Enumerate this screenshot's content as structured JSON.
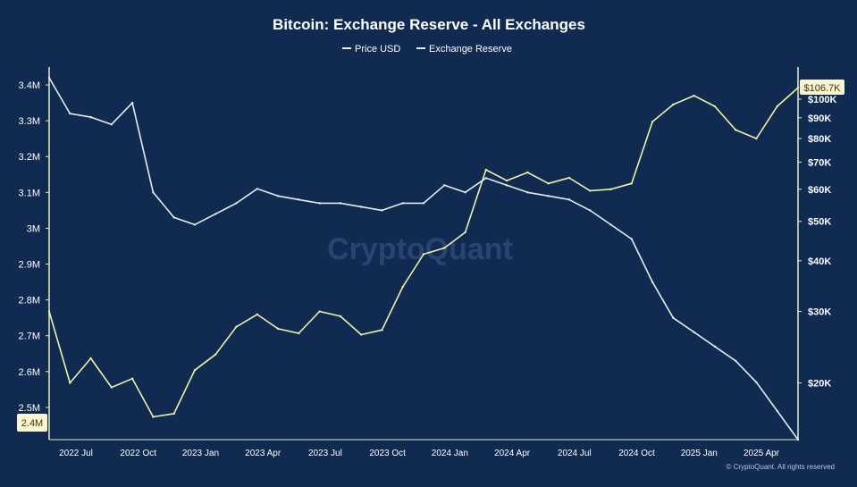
{
  "colors": {
    "background": "#102a52",
    "axis": "#e8ecc8",
    "price_line": "#eef3a8",
    "reserve_line": "#e6ecf2",
    "last_value_badge_bg": "#fbf5cf",
    "last_value_badge_text": "#3b3320",
    "watermark": "#5878a6"
  },
  "watermark": "CryptoQuant",
  "footer": "© CryptoQuant. All rights reserved",
  "chart_data": {
    "type": "line",
    "title": "Bitcoin: Exchange Reserve - All Exchanges",
    "legend_position": "top-center",
    "grid": false,
    "x_ticks": [
      "2022 Jul",
      "2022 Oct",
      "2023 Jan",
      "2023 Apr",
      "2023 Jul",
      "2023 Oct",
      "2024 Jan",
      "2024 Apr",
      "2024 Jul",
      "2024 Oct",
      "2025 Jan",
      "2025 Apr"
    ],
    "x_range": [
      "2022-06",
      "2025-06"
    ],
    "left_axis": {
      "series": "Exchange Reserve",
      "scale": "linear",
      "range": [
        2.41,
        3.45
      ],
      "ticks": [
        {
          "v": 3.4,
          "label": "3.4M"
        },
        {
          "v": 3.3,
          "label": "3.3M"
        },
        {
          "v": 3.2,
          "label": "3.2M"
        },
        {
          "v": 3.1,
          "label": "3.1M"
        },
        {
          "v": 3.0,
          "label": "3M"
        },
        {
          "v": 2.9,
          "label": "2.9M"
        },
        {
          "v": 2.8,
          "label": "2.8M"
        },
        {
          "v": 2.7,
          "label": "2.7M"
        },
        {
          "v": 2.6,
          "label": "2.6M"
        },
        {
          "v": 2.5,
          "label": "2.5M"
        }
      ],
      "last_value_label": "2.4M"
    },
    "right_axis": {
      "series": "Price USD",
      "scale": "log",
      "range": [
        14500,
        120000
      ],
      "ticks": [
        {
          "v": 100000,
          "label": "$100K"
        },
        {
          "v": 90000,
          "label": "$90K"
        },
        {
          "v": 80000,
          "label": "$80K"
        },
        {
          "v": 70000,
          "label": "$70K"
        },
        {
          "v": 60000,
          "label": "$60K"
        },
        {
          "v": 50000,
          "label": "$50K"
        },
        {
          "v": 40000,
          "label": "$40K"
        },
        {
          "v": 30000,
          "label": "$30K"
        },
        {
          "v": 20000,
          "label": "$20K"
        }
      ],
      "last_value_label": "$106.7K"
    },
    "series": [
      {
        "name": "Price USD",
        "axis": "right",
        "x": [
          "2022-06",
          "2022-07",
          "2022-08",
          "2022-09",
          "2022-10",
          "2022-11",
          "2022-12",
          "2023-01",
          "2023-02",
          "2023-03",
          "2023-04",
          "2023-05",
          "2023-06",
          "2023-07",
          "2023-08",
          "2023-09",
          "2023-10",
          "2023-11",
          "2023-12",
          "2024-01",
          "2024-02",
          "2024-03",
          "2024-04",
          "2024-05",
          "2024-06",
          "2024-07",
          "2024-08",
          "2024-09",
          "2024-10",
          "2024-11",
          "2024-12",
          "2025-01",
          "2025-02",
          "2025-03",
          "2025-04",
          "2025-05",
          "2025-06"
        ],
        "values": [
          30000,
          20000,
          23000,
          19500,
          20500,
          16500,
          16800,
          21500,
          23500,
          27500,
          29500,
          27200,
          26500,
          30000,
          29200,
          26300,
          27000,
          34500,
          41500,
          43000,
          47000,
          67000,
          63000,
          66000,
          62000,
          64000,
          59500,
          60000,
          62000,
          88000,
          97000,
          102000,
          96000,
          84000,
          80000,
          96000,
          106700
        ]
      },
      {
        "name": "Exchange Reserve",
        "axis": "left",
        "x": [
          "2022-06",
          "2022-07",
          "2022-08",
          "2022-09",
          "2022-10",
          "2022-11",
          "2022-12",
          "2023-01",
          "2023-02",
          "2023-03",
          "2023-04",
          "2023-05",
          "2023-06",
          "2023-07",
          "2023-08",
          "2023-09",
          "2023-10",
          "2023-11",
          "2023-12",
          "2024-01",
          "2024-02",
          "2024-03",
          "2024-04",
          "2024-05",
          "2024-06",
          "2024-07",
          "2024-08",
          "2024-09",
          "2024-10",
          "2024-11",
          "2024-12",
          "2025-01",
          "2025-02",
          "2025-03",
          "2025-04",
          "2025-05",
          "2025-06"
        ],
        "values": [
          3.42,
          3.32,
          3.31,
          3.29,
          3.35,
          3.1,
          3.03,
          3.01,
          3.04,
          3.07,
          3.11,
          3.09,
          3.08,
          3.07,
          3.07,
          3.06,
          3.05,
          3.07,
          3.07,
          3.12,
          3.1,
          3.14,
          3.12,
          3.1,
          3.09,
          3.08,
          3.05,
          3.01,
          2.97,
          2.85,
          2.75,
          2.71,
          2.67,
          2.63,
          2.57,
          2.49,
          2.41
        ]
      }
    ]
  }
}
